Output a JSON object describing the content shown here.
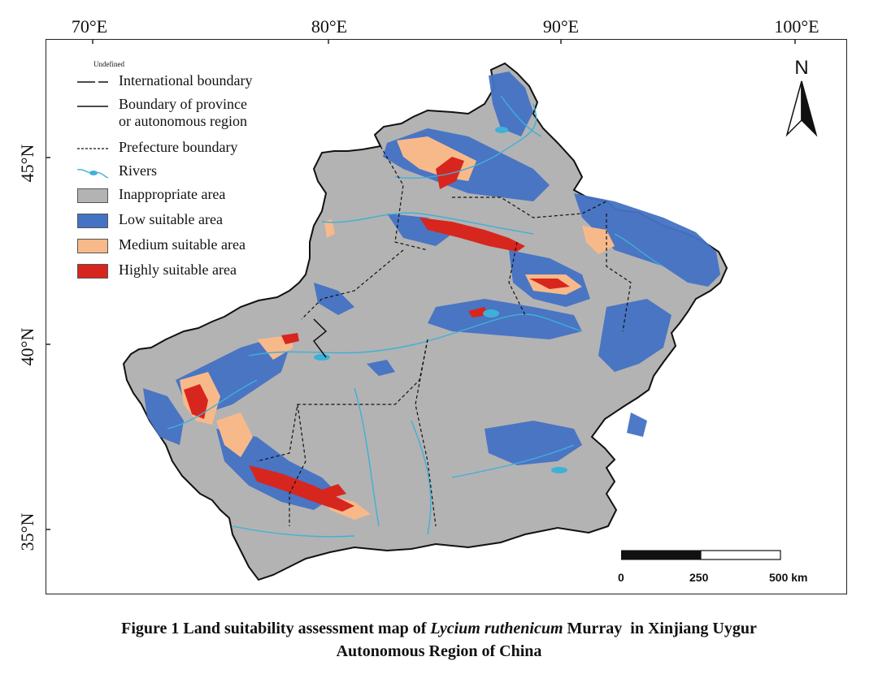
{
  "axes": {
    "longitude_labels": [
      "70°E",
      "80°E",
      "90°E",
      "100°E"
    ],
    "latitude_labels": [
      "45°N",
      "40°N",
      "35°N"
    ]
  },
  "legend": {
    "note": "Undefined",
    "items": [
      {
        "key": "international",
        "label": "International boundary"
      },
      {
        "key": "province",
        "label": "Boundary of province\nor autonomous region"
      },
      {
        "key": "prefecture",
        "label": "Prefecture boundary"
      },
      {
        "key": "rivers",
        "label": "Rivers"
      },
      {
        "key": "inappropriate",
        "label": "Inappropriate area"
      },
      {
        "key": "low",
        "label": "Low suitable area"
      },
      {
        "key": "medium",
        "label": "Medium suitable area"
      },
      {
        "key": "high",
        "label": "Highly suitable area"
      }
    ]
  },
  "colors": {
    "inappropriate": "#b3b3b3",
    "low": "#4472c4",
    "medium": "#f8b98a",
    "high": "#d7261e",
    "rivers": "#3fb0d8"
  },
  "north_arrow": {
    "label": "N"
  },
  "scale_bar": {
    "ticks": [
      "0",
      "250",
      "500 km"
    ]
  },
  "caption": {
    "line1_pre": "Figure 1 Land suitability assessment map of ",
    "species": "Lycium ruthenicum",
    "line1_post": " Murray  in Xinjiang Uygur",
    "line2": "Autonomous Region of China"
  }
}
